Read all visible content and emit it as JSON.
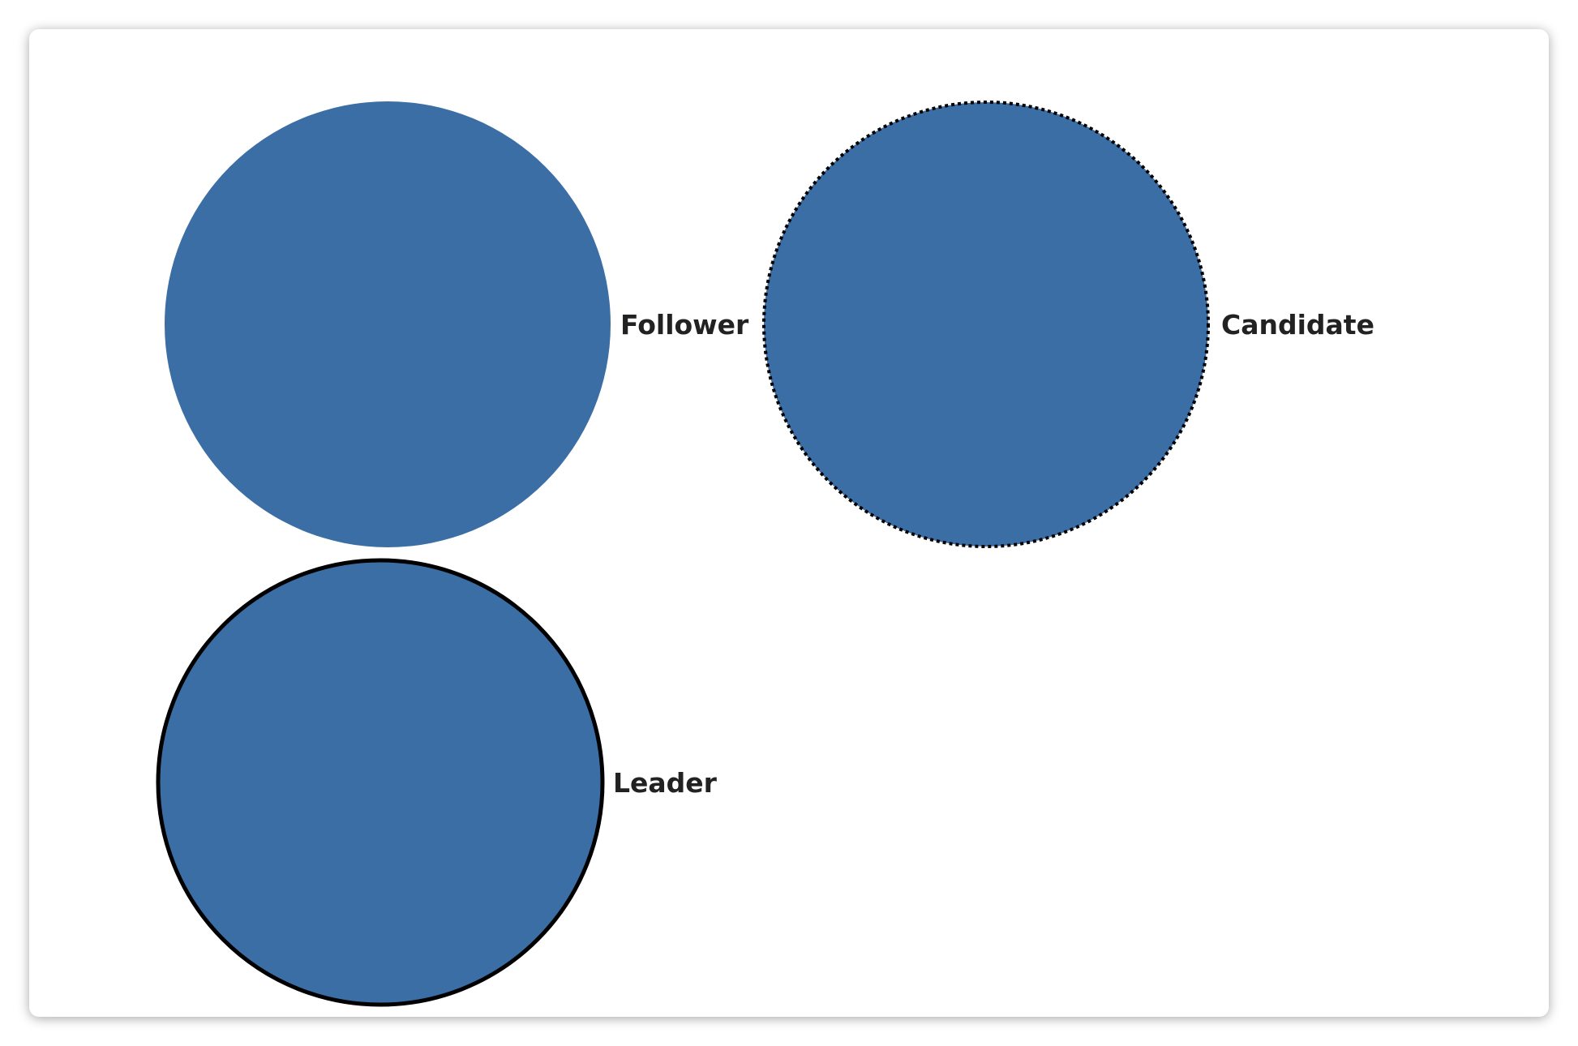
{
  "diagram": {
    "fill_color": "#3a6ea5",
    "stroke_color": "#000000",
    "nodes": [
      {
        "label": "Follower",
        "border": "none"
      },
      {
        "label": "Candidate",
        "border": "dotted"
      },
      {
        "label": "Leader",
        "border": "solid"
      }
    ]
  }
}
